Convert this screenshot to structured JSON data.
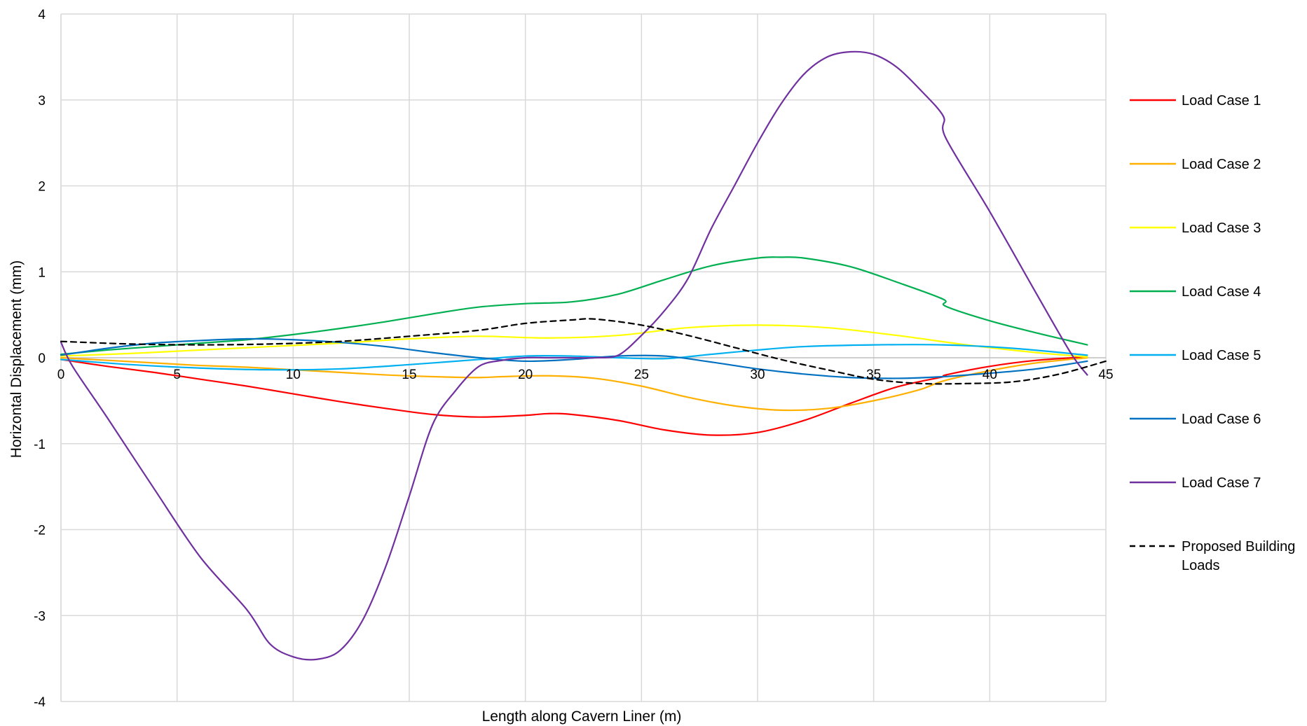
{
  "chart_data": {
    "type": "line",
    "xlabel": "Length along Cavern Liner (m)",
    "ylabel": "Horizontal Displacement (mm)",
    "xlim": [
      0,
      45
    ],
    "ylim": [
      -4,
      4
    ],
    "xticks": [
      0,
      5,
      10,
      15,
      20,
      25,
      30,
      35,
      40,
      45
    ],
    "yticks": [
      4,
      3,
      2,
      1,
      0,
      -1,
      -2,
      -3,
      -4
    ],
    "grid": true,
    "legend_position": "right",
    "series": [
      {
        "name": "Load Case 1",
        "color": "#ff0000",
        "dash": "solid",
        "x": [
          0,
          2,
          4,
          6,
          8,
          10,
          12,
          14,
          16,
          18,
          20,
          21,
          22,
          24,
          26,
          28,
          30,
          32,
          34,
          36,
          38,
          38.1,
          40,
          42,
          44.2
        ],
        "y": [
          -0.02,
          -0.1,
          -0.17,
          -0.25,
          -0.33,
          -0.42,
          -0.51,
          -0.59,
          -0.66,
          -0.69,
          -0.67,
          -0.65,
          -0.66,
          -0.73,
          -0.84,
          -0.9,
          -0.87,
          -0.73,
          -0.53,
          -0.34,
          -0.22,
          -0.2,
          -0.1,
          -0.03,
          0.01
        ]
      },
      {
        "name": "Load Case 2",
        "color": "#ffb000",
        "dash": "solid",
        "x": [
          0,
          2,
          4,
          6,
          8,
          10,
          12,
          14,
          16,
          18,
          19,
          21,
          23,
          25,
          27,
          29,
          31,
          33,
          35,
          37,
          38,
          40,
          42,
          44.2
        ],
        "y": [
          0,
          -0.03,
          -0.06,
          -0.09,
          -0.11,
          -0.14,
          -0.17,
          -0.2,
          -0.22,
          -0.23,
          -0.22,
          -0.21,
          -0.24,
          -0.33,
          -0.46,
          -0.56,
          -0.61,
          -0.59,
          -0.5,
          -0.37,
          -0.27,
          -0.15,
          -0.06,
          0
        ]
      },
      {
        "name": "Load Case 3",
        "color": "#ffff00",
        "dash": "solid",
        "x": [
          0,
          3,
          6,
          9,
          12,
          15,
          18,
          21,
          24,
          27,
          30,
          33,
          36,
          39,
          42,
          44.2
        ],
        "y": [
          0.02,
          0.05,
          0.09,
          0.13,
          0.17,
          0.22,
          0.25,
          0.23,
          0.26,
          0.35,
          0.38,
          0.35,
          0.26,
          0.15,
          0.06,
          0.01
        ]
      },
      {
        "name": "Load Case 4",
        "color": "#00b050",
        "dash": "solid",
        "x": [
          0,
          2,
          4,
          6,
          8,
          10,
          12,
          14,
          16,
          18,
          20,
          22,
          24,
          26,
          28,
          30,
          31,
          32,
          34,
          36,
          38,
          38.1,
          40,
          42,
          44.2
        ],
        "y": [
          0.04,
          0.09,
          0.13,
          0.17,
          0.21,
          0.27,
          0.34,
          0.42,
          0.51,
          0.59,
          0.63,
          0.65,
          0.74,
          0.91,
          1.07,
          1.16,
          1.17,
          1.16,
          1.06,
          0.88,
          0.68,
          0.6,
          0.43,
          0.29,
          0.15
        ]
      },
      {
        "name": "Load Case 5",
        "color": "#00b0f0",
        "dash": "solid",
        "x": [
          0,
          3,
          6,
          9,
          12,
          15,
          18,
          20,
          22,
          24,
          26,
          28,
          30,
          32,
          35,
          38,
          41,
          44.2
        ],
        "y": [
          -0.02,
          -0.08,
          -0.12,
          -0.14,
          -0.13,
          -0.08,
          -0.02,
          0.02,
          0.02,
          0.0,
          -0.01,
          0.04,
          0.09,
          0.13,
          0.15,
          0.15,
          0.11,
          0.03
        ]
      },
      {
        "name": "Load Case 6",
        "color": "#0070c0",
        "dash": "solid",
        "x": [
          0,
          2,
          4,
          6,
          8,
          10,
          12,
          14,
          16,
          18,
          20,
          22,
          24,
          26,
          28,
          30,
          32,
          34,
          36,
          38,
          40,
          42,
          44.2
        ],
        "y": [
          0.03,
          0.11,
          0.17,
          0.2,
          0.22,
          0.21,
          0.18,
          0.13,
          0.06,
          0,
          -0.04,
          -0.02,
          0.02,
          0.02,
          -0.05,
          -0.13,
          -0.19,
          -0.23,
          -0.24,
          -0.22,
          -0.18,
          -0.13,
          -0.04
        ]
      },
      {
        "name": "Load Case 7",
        "color": "#7030a0",
        "dash": "solid",
        "x": [
          0,
          0.5,
          2,
          4,
          6,
          8,
          9,
          10,
          11,
          12,
          13,
          14,
          15,
          16,
          17,
          18,
          19,
          20,
          21,
          22,
          23,
          24,
          25,
          26,
          27,
          28,
          29,
          30,
          31,
          32,
          33,
          34,
          35,
          36,
          37,
          38,
          38.1,
          40,
          42,
          43.5,
          44.2
        ],
        "y": [
          0.18,
          -0.1,
          -0.7,
          -1.52,
          -2.32,
          -2.93,
          -3.33,
          -3.48,
          -3.51,
          -3.41,
          -3.05,
          -2.42,
          -1.61,
          -0.78,
          -0.38,
          -0.1,
          -0.03,
          0.0,
          0.0,
          0.0,
          0.0,
          0.03,
          0.26,
          0.55,
          0.92,
          1.5,
          2.0,
          2.5,
          2.95,
          3.3,
          3.5,
          3.56,
          3.53,
          3.38,
          3.12,
          2.81,
          2.56,
          1.7,
          0.75,
          0.05,
          -0.2
        ]
      },
      {
        "name": "Proposed Building Loads",
        "color": "#000000",
        "dash": "dashed",
        "x": [
          0,
          3,
          6,
          9,
          12,
          15,
          18,
          20,
          22,
          23,
          25,
          27,
          29,
          31,
          33,
          35,
          37,
          39,
          41,
          43,
          45
        ],
        "y": [
          0.19,
          0.16,
          0.15,
          0.16,
          0.19,
          0.25,
          0.32,
          0.4,
          0.44,
          0.45,
          0.38,
          0.26,
          0.12,
          -0.02,
          -0.14,
          -0.25,
          -0.3,
          -0.3,
          -0.28,
          -0.19,
          -0.04
        ]
      }
    ]
  }
}
